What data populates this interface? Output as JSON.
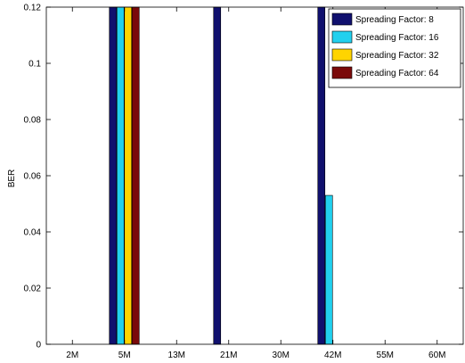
{
  "chart_data": {
    "type": "bar",
    "title": "",
    "xlabel": "",
    "ylabel": "BER",
    "ylim": [
      0,
      0.12
    ],
    "yticks": [
      "0",
      "0.02",
      "0.04",
      "0.06",
      "0.08",
      "0.1",
      "0.12"
    ],
    "yticks_values": [
      0,
      0.02,
      0.04,
      0.06,
      0.08,
      0.1,
      0.12
    ],
    "categories": [
      "2M",
      "5M",
      "13M",
      "21M",
      "30M",
      "42M",
      "55M",
      "60M"
    ],
    "grid": false,
    "legend_position": "top-right",
    "series": [
      {
        "name": "Spreading Factor: 8",
        "color": "#10106e",
        "values": [
          0,
          0.12,
          0,
          0.12,
          0,
          0.12,
          0,
          0
        ]
      },
      {
        "name": "Spreading Factor: 16",
        "color": "#22d0ee",
        "values": [
          0,
          0.12,
          0,
          0,
          0,
          0.053,
          0,
          0
        ]
      },
      {
        "name": "Spreading Factor: 32",
        "color": "#ffd400",
        "values": [
          0,
          0.12,
          0,
          0,
          0,
          0,
          0,
          0
        ]
      },
      {
        "name": "Spreading Factor: 64",
        "color": "#7a0a0a",
        "values": [
          0,
          0.12,
          0,
          0,
          0,
          0,
          0,
          0
        ]
      }
    ]
  }
}
